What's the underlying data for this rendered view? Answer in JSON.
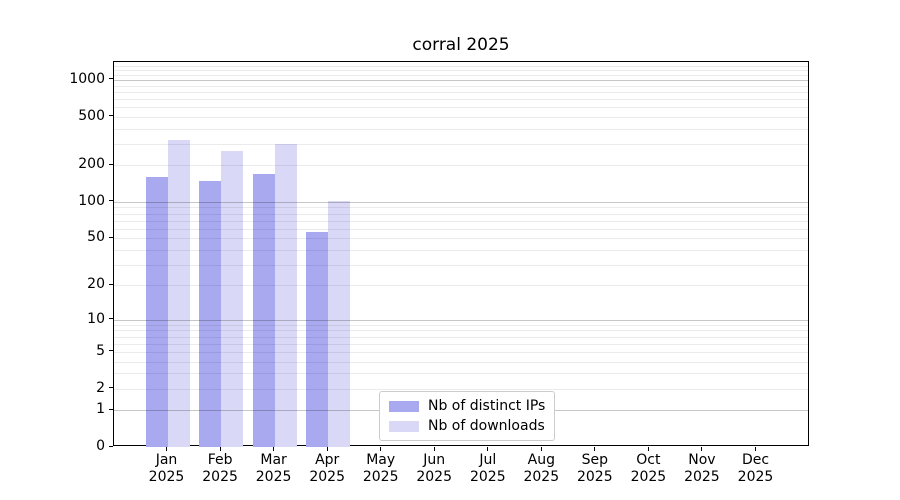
{
  "chart_data": {
    "type": "bar",
    "title": "corral 2025",
    "categories": [
      "Jan",
      "Feb",
      "Mar",
      "Apr",
      "May",
      "Jun",
      "Jul",
      "Aug",
      "Sep",
      "Oct",
      "Nov",
      "Dec"
    ],
    "x_tick_year_label": "2025",
    "series": [
      {
        "name": "Nb of distinct IPs",
        "color": "#a9a9f0",
        "values": [
          161,
          148,
          168,
          56,
          0,
          0,
          0,
          0,
          0,
          0,
          0,
          0
        ]
      },
      {
        "name": "Nb of downloads",
        "color": "#d9d9f7",
        "values": [
          322,
          262,
          297,
          101,
          0,
          0,
          0,
          0,
          0,
          0,
          0,
          0
        ]
      }
    ],
    "y_ticks": [
      0,
      1,
      2,
      5,
      10,
      20,
      50,
      100,
      200,
      500,
      1000
    ],
    "y_scale": "log10(value+1)",
    "ylim": [
      0,
      1400
    ],
    "xlabel": "",
    "ylabel": "",
    "grid": "horizontal",
    "legend_position": "bottom-center-inside"
  },
  "colors": {
    "background": "#ffffff",
    "spine": "#000000",
    "grid_major": "rgba(0,0,0,0.22)",
    "grid_minor": "rgba(0,0,0,0.08)",
    "legend_border": "#cccccc",
    "text": "#000000"
  }
}
